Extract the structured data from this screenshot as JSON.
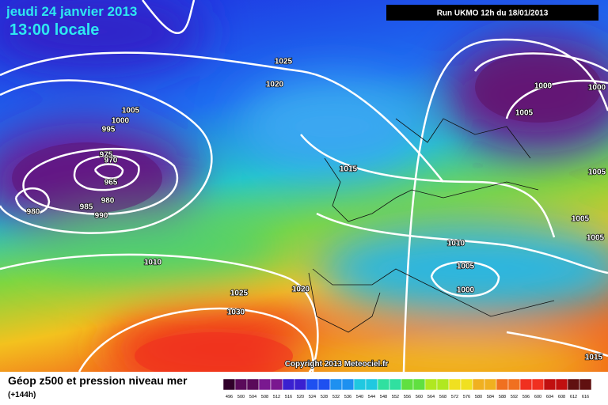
{
  "header": {
    "date": "jeudi 24 janvier 2013",
    "time": "13:00 locale",
    "run": "Run UKMO 12h du 18/01/2013"
  },
  "isobar_labels": [
    "1025",
    "1020",
    "1005",
    "1000",
    "995",
    "975",
    "970",
    "965",
    "980",
    "985",
    "990",
    "980",
    "1010",
    "1025",
    "1030",
    "1020",
    "1015",
    "1010",
    "1005",
    "1000",
    "1000",
    "1000",
    "1005",
    "1005",
    "1005",
    "1005",
    "1015"
  ],
  "copyright": "Copyright 2013 Meteociel.fr",
  "legend": {
    "title": "Géop z500 et pression niveau mer",
    "subtitle": "(+144h)",
    "scale": [
      496,
      500,
      504,
      508,
      512,
      516,
      520,
      524,
      528,
      532,
      536,
      540,
      544,
      548,
      552,
      556,
      560,
      564,
      568,
      572,
      576,
      580,
      584,
      588,
      592,
      596,
      600,
      604,
      608,
      612,
      616
    ]
  }
}
